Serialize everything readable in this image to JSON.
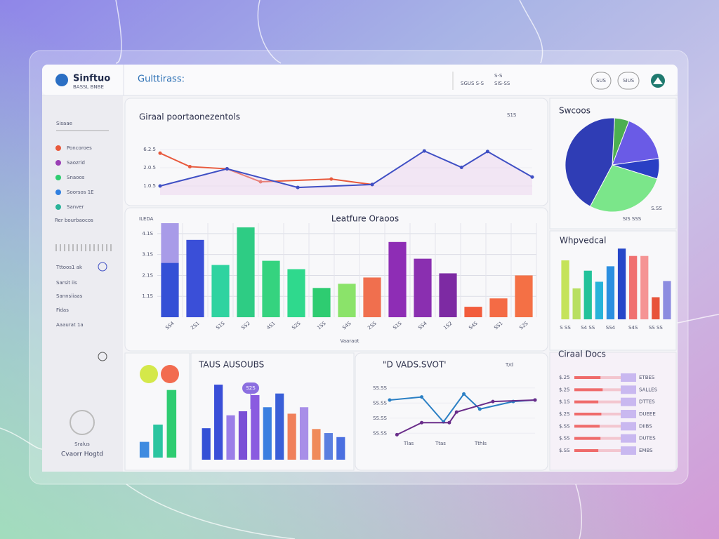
{
  "app": {
    "brand": "Sinftuo",
    "brand_sub": "BASSL  BNBE",
    "header_title": "Gulttirass:",
    "header_meta": [
      "S-S",
      "SGUS  S-S",
      "SIS-SS"
    ],
    "header_buttons": [
      "SUS",
      "SIUS"
    ]
  },
  "sidebar": {
    "search": "Sisaae",
    "items": [
      "Poncoroes",
      "Saozrid",
      "Snaoos",
      "Soorsos 1E",
      "Sanver"
    ],
    "section": "Rer bourbaocos",
    "items2": [
      "Tttoos1 ak",
      "Sarsit iis",
      "Sannsiiaas",
      "Fidas",
      "Aaaurat 1a"
    ],
    "footer": [
      "Sralus",
      "Cvaorr Hogtd"
    ]
  },
  "chart_data": [
    {
      "type": "line",
      "title": "Giraal poortaonezentols",
      "corner": "S1S",
      "xlim": [
        0,
        10
      ],
      "ylim": [
        5,
        35
      ],
      "yticks": [
        {
          "value": 30,
          "label": "6.2.5"
        },
        {
          "value": 20,
          "label": "2.0.5"
        },
        {
          "value": 10,
          "label": "1.0.5"
        }
      ],
      "series": [
        {
          "color": "#e8593c",
          "x": [
            0,
            0.8,
            1.8,
            2.7,
            4.6,
            5.7
          ],
          "values": [
            28,
            20.6,
            19.4,
            12.3,
            13.8,
            10.8
          ]
        },
        {
          "color": "#3f4fc4",
          "x": [
            0,
            1.8,
            3.7,
            5.7,
            7.1,
            8.1,
            8.8,
            10
          ],
          "values": [
            10,
            19.4,
            9.2,
            10.8,
            29.2,
            20.2,
            28.9,
            14.9
          ]
        }
      ]
    },
    {
      "type": "bar",
      "title": "Leatfure Oraoos",
      "ylabel": "ILEDA",
      "xlabel": "Vaaraot",
      "ylim": [
        0,
        45
      ],
      "grid": true,
      "yticks": [
        {
          "value": 40,
          "label": "4.1S"
        },
        {
          "value": 30,
          "label": "3.1S"
        },
        {
          "value": 20,
          "label": "2.1S"
        },
        {
          "value": 10,
          "label": "1.1S"
        }
      ],
      "categories": [
        "SS4",
        "2S1",
        "S1S",
        "SS2",
        "4S1",
        "S2S",
        "1SS",
        "S4S",
        "2SS",
        "S1S",
        "SS4",
        "1S2",
        "S4S",
        "SS1",
        "S2S"
      ],
      "series": [
        {
          "colors": [
            "#3450d6",
            "#3a4fd8",
            "#2fd3a0",
            "#2ecc84",
            "#35d37f",
            "#2fd98d",
            "#2ecc71",
            "#8be36a",
            "#f06f4e",
            "#8e2db5",
            "#8a2fb0",
            "#7d2aa3",
            "#f25c3c",
            "#f46b45",
            "#f47045"
          ],
          "values": [
            26,
            37,
            25,
            43,
            27,
            23,
            14,
            16,
            19,
            36,
            28,
            21,
            5,
            9,
            20
          ]
        },
        {
          "color": "#a89be8",
          "values": [
            19,
            null,
            null,
            null,
            null,
            null,
            null,
            null,
            null,
            null,
            null,
            null,
            null,
            null,
            null
          ]
        }
      ]
    },
    {
      "type": "pie",
      "title": "Swcoos",
      "footnotes": [
        "S.SS",
        "SIS SSS"
      ],
      "colors": [
        "#4caf50",
        "#6a5be6",
        "#2a3fc4",
        "#7be68a",
        "#2f3db5"
      ],
      "values": [
        5,
        17,
        7,
        28,
        43
      ]
    },
    {
      "type": "bar",
      "title": "Whpvedcal",
      "ylim": [
        0,
        100
      ],
      "categories": [
        "S SS",
        null,
        "S4 SS",
        null,
        "SS4",
        null,
        "S4S",
        null,
        "SS SS",
        null
      ],
      "series": [
        {
          "colors": [
            "#c5e35a",
            "#b8df62",
            "#22c29a",
            "#27b3d9",
            "#2b8fe0",
            "#2647c9",
            "#f07070",
            "#f59494",
            "#e8533a",
            "#8c8ce0"
          ],
          "values": [
            80,
            42,
            66,
            51,
            72,
            96,
            86,
            86,
            30,
            52
          ]
        }
      ]
    },
    {
      "type": "bar",
      "ylim": [
        0,
        100
      ],
      "series": [
        {
          "colors": [
            "#3f8be0",
            "#2bc5a0",
            "#2ecc71"
          ],
          "values": [
            20,
            42,
            86
          ]
        }
      ]
    },
    {
      "type": "bar",
      "title": "TAUS AUSOUBS",
      "annotation": "S2S",
      "ylim": [
        0,
        100
      ],
      "series": [
        {
          "colors": [
            "#3450d6",
            "#3a4fd8",
            "#9b7ee8",
            "#7a4fd6",
            "#8a5be0",
            "#3a7fe0",
            "#3a5fd8",
            "#f0805a",
            "#a88ee8",
            "#f08a5a",
            "#5a7fe0",
            "#4a6fe0"
          ],
          "values": [
            39,
            93,
            55,
            60,
            80,
            65,
            82,
            57,
            65,
            38,
            33,
            28
          ]
        }
      ]
    },
    {
      "type": "line",
      "title": "\"D VADS.SVOT'",
      "corner": "T/d",
      "xlim": [
        0,
        10
      ],
      "ylim": [
        0,
        40
      ],
      "yticks": [
        {
          "value": 35,
          "label": "SS.SS"
        },
        {
          "value": 25,
          "label": "SS.SS"
        },
        {
          "value": 15,
          "label": "SS.SS"
        },
        {
          "value": 5,
          "label": "SS.SS"
        }
      ],
      "xlabels": [
        "Tlas",
        "Ttas",
        "Tthls"
      ],
      "series": [
        {
          "color": "#2a7fc4",
          "x": [
            0,
            2.2,
            3.7,
            5.1,
            6.2,
            8.5,
            10
          ],
          "values": [
            27,
            29,
            12.5,
            31,
            21,
            26,
            27
          ]
        },
        {
          "color": "#6a2d8a",
          "x": [
            0.5,
            2.2,
            4.1,
            4.6,
            7.1,
            10
          ],
          "values": [
            4,
            12,
            12,
            19,
            26,
            27
          ]
        }
      ]
    },
    {
      "type": "hbar",
      "title": "Ciraal Docs",
      "xlim": [
        0,
        100
      ],
      "categories": [
        "ETBES",
        "SALLES",
        "DTTES",
        "DUEEE",
        "DIIBS",
        "DUTES",
        "EMBS"
      ],
      "row_labels": [
        "$.25",
        "$.25",
        "$.1S",
        "$.2S",
        "$.SS",
        "$.SS",
        "$.SS"
      ],
      "color": "#ef6b6b",
      "values": [
        60,
        65,
        55,
        62,
        58,
        60,
        55
      ]
    }
  ]
}
